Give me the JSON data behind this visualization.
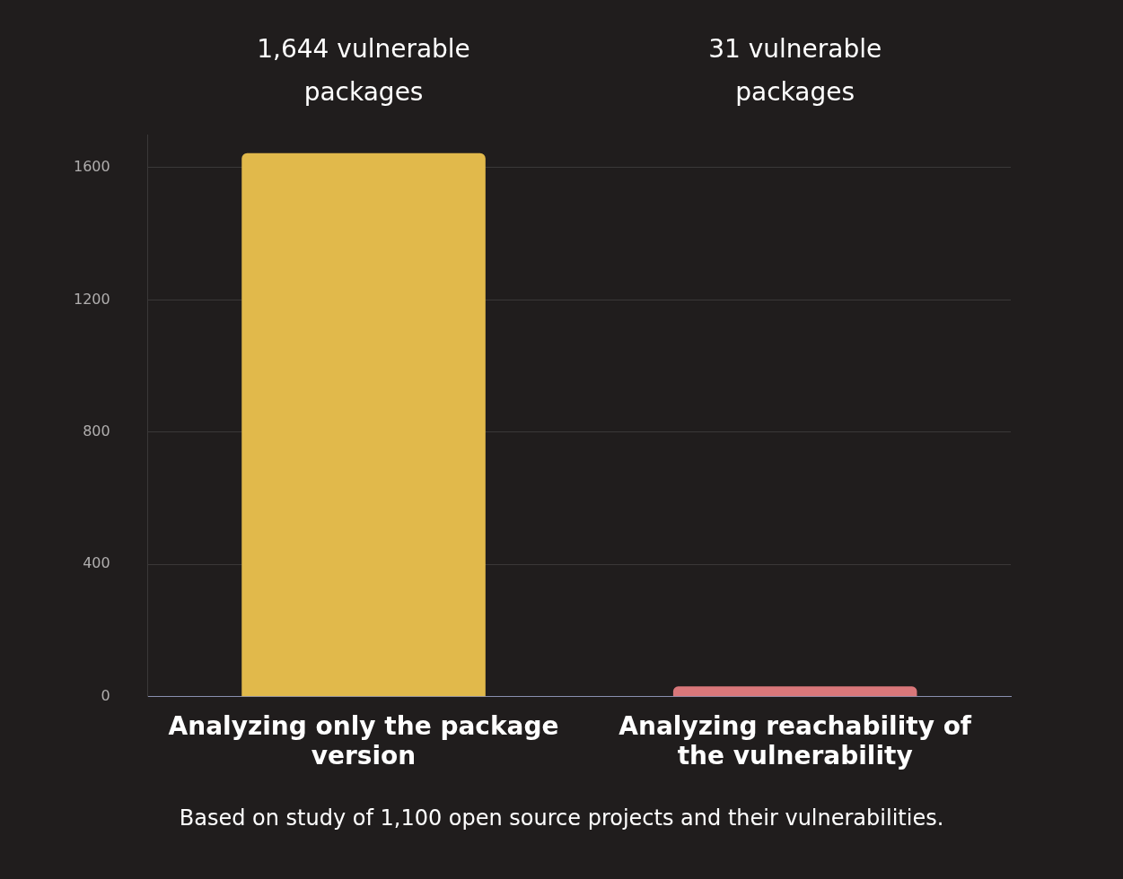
{
  "chart_data": {
    "type": "bar",
    "categories": [
      "Analyzing only the package version",
      "Analyzing reachability of the vulnerability"
    ],
    "values": [
      1644,
      31
    ],
    "colors": [
      "#e1b94b",
      "#d9777a"
    ],
    "value_labels": [
      "1,644 vulnerable packages",
      "31 vulnerable packages"
    ],
    "ylim": [
      0,
      1700
    ],
    "yticks": [
      0,
      400,
      800,
      1200,
      1600
    ],
    "grid": "y",
    "annotations": [
      "Based on study of 1,100 open source projects and their vulnerabilities."
    ]
  }
}
